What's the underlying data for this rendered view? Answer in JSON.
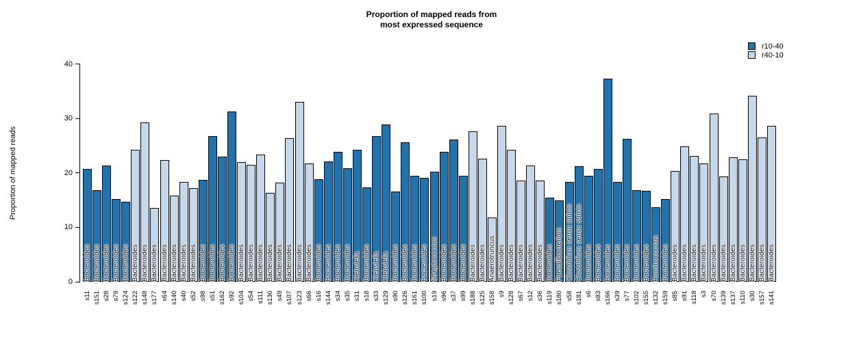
{
  "title": {
    "line1": "Proportion of mapped reads from",
    "line2": "most expressed sequence"
  },
  "y_axis": {
    "label": "Proportion of mapped reads",
    "ticks": [
      "0",
      "10",
      "20",
      "30",
      "40"
    ]
  },
  "colors": {
    "dark": "#2173ae",
    "light": "#c6d9ec",
    "border": "#000000"
  },
  "legend": {
    "items": [
      {
        "label": "r10-40",
        "color": "#2173ae"
      },
      {
        "label": "r40-10",
        "color": "#c6d9ec"
      }
    ]
  },
  "chart_data": {
    "type": "bar",
    "title": "Proportion of mapped reads from most expressed sequence",
    "xlabel": "",
    "ylabel": "Proportion of mapped reads",
    "ylim": [
      0,
      40
    ],
    "grid": false,
    "legend_position": "top-right",
    "groups": [
      "r10-40",
      "r40-10"
    ],
    "bars": [
      {
        "sample": "s11",
        "value": 20.7,
        "group": "r10-40",
        "taxon": "Bacteroides"
      },
      {
        "sample": "s151",
        "value": 16.8,
        "group": "r10-40",
        "taxon": "Bacteroides"
      },
      {
        "sample": "s28",
        "value": 21.4,
        "group": "r10-40",
        "taxon": "Bacteroides"
      },
      {
        "sample": "s79",
        "value": 15.2,
        "group": "r10-40",
        "taxon": "Bacteroides"
      },
      {
        "sample": "s124",
        "value": 14.7,
        "group": "r10-40",
        "taxon": "Bacteroides"
      },
      {
        "sample": "s122",
        "value": 24.2,
        "group": "r40-10",
        "taxon": "Bacteroides"
      },
      {
        "sample": "s148",
        "value": 29.3,
        "group": "r40-10",
        "taxon": "Bacteroides"
      },
      {
        "sample": "s177",
        "value": 13.6,
        "group": "r40-10",
        "taxon": "Bacteroides"
      },
      {
        "sample": "s64",
        "value": 22.4,
        "group": "r40-10",
        "taxon": "Bacteroides"
      },
      {
        "sample": "s140",
        "value": 15.9,
        "group": "r40-10",
        "taxon": "Bacteroides"
      },
      {
        "sample": "s40",
        "value": 18.3,
        "group": "r40-10",
        "taxon": "Bacteroides"
      },
      {
        "sample": "s52",
        "value": 17.2,
        "group": "r40-10",
        "taxon": "Bacteroides"
      },
      {
        "sample": "s98",
        "value": 18.7,
        "group": "r10-40",
        "taxon": "Bacteroides"
      },
      {
        "sample": "s51",
        "value": 26.8,
        "group": "r10-40",
        "taxon": "Bacteroides"
      },
      {
        "sample": "s162",
        "value": 23.0,
        "group": "r10-40",
        "taxon": "Bacteroides"
      },
      {
        "sample": "s92",
        "value": 31.3,
        "group": "r10-40",
        "taxon": "Bacteroides"
      },
      {
        "sample": "s104",
        "value": 22.0,
        "group": "r40-10",
        "taxon": "Bacteroides"
      },
      {
        "sample": "s54",
        "value": 21.5,
        "group": "r40-10",
        "taxon": "Bacteroides"
      },
      {
        "sample": "s111",
        "value": 23.4,
        "group": "r40-10",
        "taxon": "Bacteroides"
      },
      {
        "sample": "s130",
        "value": 16.4,
        "group": "r40-10",
        "taxon": "Bacteroides"
      },
      {
        "sample": "s49",
        "value": 18.2,
        "group": "r40-10",
        "taxon": "Bacteroides"
      },
      {
        "sample": "s107",
        "value": 26.4,
        "group": "r40-10",
        "taxon": "Bacteroides"
      },
      {
        "sample": "s123",
        "value": 33.0,
        "group": "r40-10",
        "taxon": "Bacteroides"
      },
      {
        "sample": "s66",
        "value": 21.8,
        "group": "r40-10",
        "taxon": "Bacteroides"
      },
      {
        "sample": "s16",
        "value": 18.8,
        "group": "r10-40",
        "taxon": "Bacteroides"
      },
      {
        "sample": "s144",
        "value": 22.1,
        "group": "r10-40",
        "taxon": "Bacteroides"
      },
      {
        "sample": "s34",
        "value": 23.9,
        "group": "r10-40",
        "taxon": "Bacteroides"
      },
      {
        "sample": "s35",
        "value": 20.9,
        "group": "r10-40",
        "taxon": "Bacteroides"
      },
      {
        "sample": "s31",
        "value": 24.2,
        "group": "r10-40",
        "taxon": "Klebsiella"
      },
      {
        "sample": "s18",
        "value": 17.3,
        "group": "r10-40",
        "taxon": "Bacteroides"
      },
      {
        "sample": "s33",
        "value": 26.8,
        "group": "r10-40",
        "taxon": "Klebsiella"
      },
      {
        "sample": "s129",
        "value": 28.9,
        "group": "r10-40",
        "taxon": "Klebsiella"
      },
      {
        "sample": "s90",
        "value": 16.6,
        "group": "r10-40",
        "taxon": "Bacteroides"
      },
      {
        "sample": "s126",
        "value": 25.6,
        "group": "r10-40",
        "taxon": "Bacteroides"
      },
      {
        "sample": "s161",
        "value": 19.5,
        "group": "r10-40",
        "taxon": "Bacteroides"
      },
      {
        "sample": "s100",
        "value": 19.1,
        "group": "r10-40",
        "taxon": "Bacteroides"
      },
      {
        "sample": "s19",
        "value": 20.3,
        "group": "r10-40",
        "taxon": "Streptococcus"
      },
      {
        "sample": "s96",
        "value": 23.9,
        "group": "r10-40",
        "taxon": "Bacteroides"
      },
      {
        "sample": "s37",
        "value": 26.2,
        "group": "r10-40",
        "taxon": "Bacteroides"
      },
      {
        "sample": "s99",
        "value": 19.5,
        "group": "r10-40",
        "taxon": "Bacteroides"
      },
      {
        "sample": "s188",
        "value": 27.6,
        "group": "r40-10",
        "taxon": "Bacteroides"
      },
      {
        "sample": "s125",
        "value": 22.6,
        "group": "r40-10",
        "taxon": "Bacteroides"
      },
      {
        "sample": "s158",
        "value": 11.8,
        "group": "r40-10",
        "taxon": "Anaerotruncus"
      },
      {
        "sample": "s9",
        "value": 28.6,
        "group": "r40-10",
        "taxon": "Bacteroides"
      },
      {
        "sample": "s128",
        "value": 24.3,
        "group": "r40-10",
        "taxon": "Bacteroides"
      },
      {
        "sample": "s67",
        "value": 18.6,
        "group": "r40-10",
        "taxon": "Bacteroides"
      },
      {
        "sample": "s12",
        "value": 21.4,
        "group": "r40-10",
        "taxon": "Bacteroides"
      },
      {
        "sample": "s36",
        "value": 18.6,
        "group": "r40-10",
        "taxon": "Bacteroides"
      },
      {
        "sample": "s119",
        "value": 15.5,
        "group": "r10-40",
        "taxon": "Bacteroides"
      },
      {
        "sample": "s180",
        "value": 14.9,
        "group": "r10-40",
        "taxon": "Faecalibacterium"
      },
      {
        "sample": "s58",
        "value": 18.4,
        "group": "r10-40",
        "taxon": "Clostridium sensu stricto"
      },
      {
        "sample": "s181",
        "value": 21.2,
        "group": "r10-40",
        "taxon": "Clostridium sensu stricto"
      },
      {
        "sample": "s6",
        "value": 19.5,
        "group": "r10-40",
        "taxon": "Bacteroides"
      },
      {
        "sample": "s83",
        "value": 20.7,
        "group": "r10-40",
        "taxon": "Bacteroides"
      },
      {
        "sample": "s166",
        "value": 37.3,
        "group": "r10-40",
        "taxon": "Bacteroides"
      },
      {
        "sample": "s39",
        "value": 18.4,
        "group": "r10-40",
        "taxon": "Bacteroides"
      },
      {
        "sample": "s77",
        "value": 26.3,
        "group": "r10-40",
        "taxon": "Bacteroides"
      },
      {
        "sample": "s102",
        "value": 16.8,
        "group": "r10-40",
        "taxon": "Bacteroides"
      },
      {
        "sample": "s155",
        "value": 16.7,
        "group": "r10-40",
        "taxon": "Bacteroides"
      },
      {
        "sample": "s132",
        "value": 13.7,
        "group": "r10-40",
        "taxon": "Ruminococcus"
      },
      {
        "sample": "s159",
        "value": 15.2,
        "group": "r10-40",
        "taxon": "Bacteroides"
      },
      {
        "sample": "s85",
        "value": 20.4,
        "group": "r40-10",
        "taxon": "Bacteroides"
      },
      {
        "sample": "s91",
        "value": 24.9,
        "group": "r40-10",
        "taxon": "Bacteroides"
      },
      {
        "sample": "s118",
        "value": 23.1,
        "group": "r40-10",
        "taxon": "Bacteroides"
      },
      {
        "sample": "s3",
        "value": 21.7,
        "group": "r40-10",
        "taxon": "Bacteroides"
      },
      {
        "sample": "s70",
        "value": 30.9,
        "group": "r40-10",
        "taxon": "Bacteroides"
      },
      {
        "sample": "s139",
        "value": 19.3,
        "group": "r40-10",
        "taxon": "Bacteroides"
      },
      {
        "sample": "s137",
        "value": 22.9,
        "group": "r40-10",
        "taxon": "Bacteroides"
      },
      {
        "sample": "s110",
        "value": 22.5,
        "group": "r40-10",
        "taxon": "Bacteroides"
      },
      {
        "sample": "s30",
        "value": 34.2,
        "group": "r40-10",
        "taxon": "Bacteroides"
      },
      {
        "sample": "s157",
        "value": 26.5,
        "group": "r40-10",
        "taxon": "Bacteroides"
      },
      {
        "sample": "s141",
        "value": 28.6,
        "group": "r40-10",
        "taxon": "Bacteroides"
      }
    ]
  }
}
